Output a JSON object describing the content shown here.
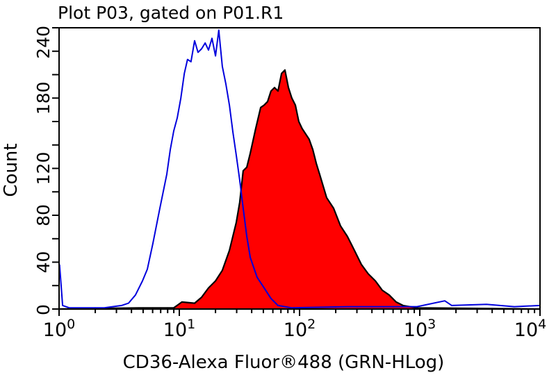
{
  "chart_data": {
    "type": "area",
    "title": "Plot P03, gated on P01.R1",
    "xlabel": "CD36-Alexa Fluor®488 (GRN-HLog)",
    "ylabel": "Count",
    "xscale": "log",
    "xlim": [
      1,
      10000
    ],
    "ylim": [
      0,
      240
    ],
    "x_tick_labels": [
      {
        "base": "10",
        "exp": "0",
        "value": 1
      },
      {
        "base": "10",
        "exp": "1",
        "value": 10
      },
      {
        "base": "10",
        "exp": "2",
        "value": 100
      },
      {
        "base": "10",
        "exp": "3",
        "value": 1000
      },
      {
        "base": "10",
        "exp": "4",
        "value": 10000
      }
    ],
    "y_tick_labels": [
      "0",
      "40",
      "80",
      "120",
      "180",
      "240"
    ],
    "y_tick_values": [
      0,
      40,
      80,
      120,
      180,
      240
    ],
    "grid": false,
    "series": [
      {
        "style": "line",
        "color": "#0000dd",
        "x": [
          1.01,
          1.07,
          1.22,
          2.38,
          3.31,
          3.78,
          4.32,
          4.94,
          5.42,
          6.03,
          6.89,
          7.87,
          8.41,
          8.99,
          9.61,
          10.3,
          11.0,
          11.7,
          12.5,
          13.4,
          14.3,
          15.3,
          16.4,
          17.5,
          18.7,
          20.0,
          21.3,
          22.8,
          24.4,
          26.1,
          27.9,
          29.8,
          31.8,
          34.0,
          36.4,
          38.9,
          44.4,
          50.7,
          57.9,
          66.2,
          86.3,
          250,
          948,
          1614,
          1845,
          3589,
          6109,
          10000
        ],
        "y": [
          38,
          3,
          1,
          1,
          3,
          5,
          12,
          24,
          34,
          56,
          86,
          115,
          136,
          152,
          163,
          180,
          201,
          213,
          211,
          229,
          219,
          222,
          227,
          221,
          231,
          216,
          238,
          207,
          192,
          174,
          151,
          131,
          110,
          86,
          62,
          44,
          27,
          18,
          9,
          3,
          1,
          2,
          2,
          7,
          3,
          4,
          2,
          3
        ]
      },
      {
        "style": "filled",
        "color": "#ff0000",
        "edge_color": "#000000",
        "x": [
          1,
          4.62,
          8.99,
          10.5,
          13.4,
          15.3,
          17.5,
          20.0,
          22.8,
          26.1,
          29.8,
          31.8,
          34.0,
          36.4,
          38.9,
          43.2,
          47.5,
          50.7,
          54.2,
          57.9,
          61.9,
          66.2,
          70.8,
          75.6,
          80.8,
          86.3,
          92.3,
          98.6,
          105,
          120,
          129,
          138,
          147,
          168,
          192,
          219,
          250,
          286,
          327,
          373,
          427,
          488,
          557,
          636,
          726,
          948,
          10000
        ],
        "y": [
          0,
          1,
          1,
          6,
          5,
          10,
          18,
          24,
          33,
          50,
          74,
          91,
          118,
          121,
          133,
          154,
          172,
          174,
          177,
          186,
          189,
          186,
          201,
          204,
          189,
          180,
          174,
          160,
          154,
          145,
          136,
          124,
          115,
          95,
          86,
          71,
          62,
          50,
          38,
          30,
          24,
          16,
          12,
          6,
          3,
          1,
          0
        ]
      }
    ]
  }
}
